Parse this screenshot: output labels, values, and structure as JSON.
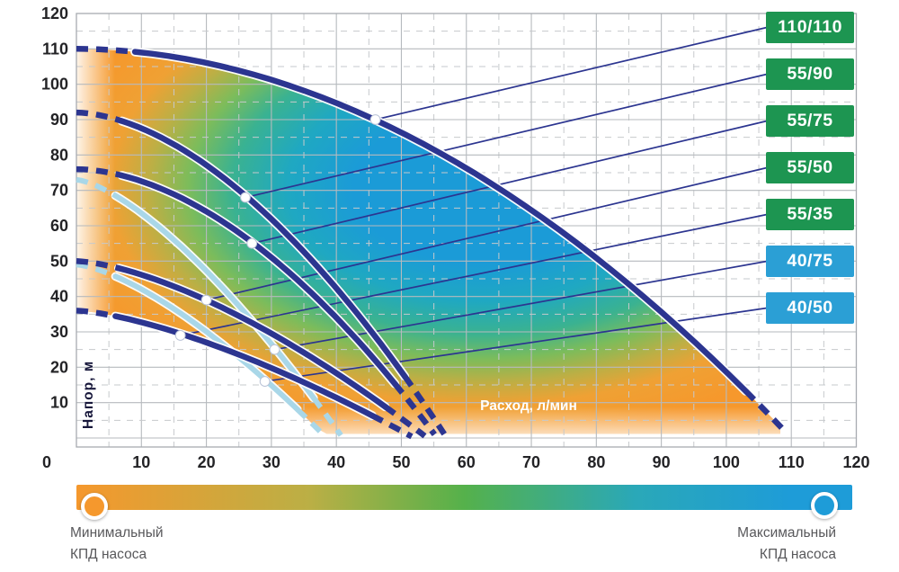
{
  "colors": {
    "curve_navy": "#2C3590",
    "curve_pale": "#A9D7E8",
    "grid_solid": "#b6babe",
    "grid_dashed": "#c6c9cc",
    "plot_border": "#a7abb0",
    "tick_text": "#232326",
    "legend_text": "#58585B",
    "axis_label_dark": "#17173B",
    "axis_label_light": "#FFFFFF",
    "marker_fill": "#FFFFFF",
    "min_efficiency": "#F5982D",
    "max_efficiency": "#1E9CD8"
  },
  "chart_data": {
    "type": "line",
    "subtype": "pump-performance-field",
    "xlabel": "Расход, л/мин",
    "ylabel": "Напор, м",
    "xlim": [
      0,
      120
    ],
    "ylim": [
      0,
      120
    ],
    "x_ticks": [
      0,
      10,
      20,
      30,
      40,
      50,
      60,
      70,
      80,
      90,
      100,
      110,
      120
    ],
    "y_ticks": [
      10,
      20,
      30,
      40,
      50,
      60,
      70,
      80,
      90,
      100,
      110,
      120
    ],
    "origin_label": "0",
    "grid": {
      "solid_step": 10,
      "dashed_step": 5,
      "grid_on": true
    },
    "series": [
      {
        "label": "110/110",
        "style": "navy",
        "tag_color": "#1D9551",
        "shutoff_head_m": 110,
        "end_flow_l_min": 110,
        "duty_point": {
          "flow": 46,
          "head": 90
        }
      },
      {
        "label": "55/90",
        "style": "navy",
        "tag_color": "#1D9551",
        "shutoff_head_m": 92,
        "end_flow_l_min": 57,
        "duty_point": {
          "flow": 26,
          "head": 68
        }
      },
      {
        "label": "55/75",
        "style": "navy",
        "tag_color": "#1D9551",
        "shutoff_head_m": 76,
        "end_flow_l_min": 55.5,
        "duty_point": {
          "flow": 27,
          "head": 55
        }
      },
      {
        "label": "55/50",
        "style": "navy",
        "tag_color": "#1D9551",
        "shutoff_head_m": 50,
        "end_flow_l_min": 54,
        "duty_point": {
          "flow": 20,
          "head": 39
        }
      },
      {
        "label": "55/35",
        "style": "navy",
        "tag_color": "#1D9551",
        "shutoff_head_m": 36,
        "end_flow_l_min": 52,
        "duty_point": {
          "flow": 16,
          "head": 29
        }
      },
      {
        "label": "40/75",
        "style": "pale",
        "tag_color": "#2B9FD5",
        "shutoff_head_m": 73,
        "end_flow_l_min": 41,
        "duty_point": {
          "flow": 30.5,
          "head": 25
        }
      },
      {
        "label": "40/50",
        "style": "pale",
        "tag_color": "#2B9FD5",
        "shutoff_head_m": 49,
        "end_flow_l_min": 38.5,
        "duty_point": {
          "flow": 29,
          "head": 16
        }
      }
    ],
    "efficiency_stops": [
      {
        "offset": 0.0,
        "color": "#1B9BD7"
      },
      {
        "offset": 0.3,
        "color": "#1B9BD7"
      },
      {
        "offset": 0.45,
        "color": "#1FA8C2"
      },
      {
        "offset": 0.58,
        "color": "#3AB291"
      },
      {
        "offset": 0.68,
        "color": "#7CBC5B"
      },
      {
        "offset": 0.77,
        "color": "#BCAF45"
      },
      {
        "offset": 0.86,
        "color": "#EFA134"
      },
      {
        "offset": 1.0,
        "color": "#F6982C"
      }
    ],
    "efficiency_bar_gradient": [
      "#F5982D",
      "#BBAF45",
      "#55B14B",
      "#2AA8B8",
      "#1E9CD8"
    ],
    "legend": {
      "min_label": "Минимальный\nКПД насоса",
      "max_label": "Максимальный\nКПД насоса"
    }
  }
}
